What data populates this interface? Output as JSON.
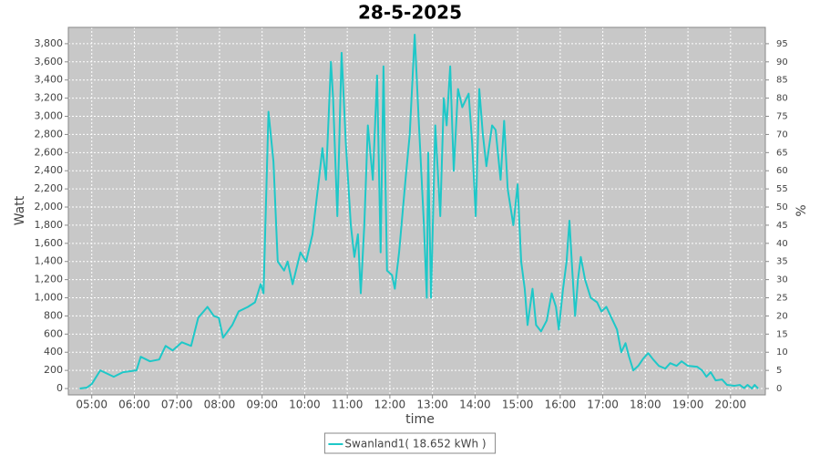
{
  "chart_data": {
    "type": "line",
    "title": "28-5-2025",
    "xlabel": "time",
    "ylabel": "Watt",
    "y2label": "%",
    "x": [
      "04:43",
      "04:53",
      "05:00",
      "05:12",
      "05:31",
      "05:44",
      "06:03",
      "06:09",
      "06:22",
      "06:35",
      "06:44",
      "06:54",
      "07:07",
      "07:20",
      "07:30",
      "07:43",
      "07:52",
      "07:59",
      "08:05",
      "08:18",
      "08:27",
      "08:40",
      "08:50",
      "08:58",
      "09:02",
      "09:09",
      "09:16",
      "09:22",
      "09:31",
      "09:36",
      "09:43",
      "09:54",
      "10:02",
      "10:11",
      "10:20",
      "10:25",
      "10:30",
      "10:37",
      "10:40",
      "10:46",
      "10:52",
      "10:58",
      "11:05",
      "11:10",
      "11:15",
      "11:19",
      "11:24",
      "11:29",
      "11:36",
      "11:42",
      "11:47",
      "11:51",
      "11:56",
      "12:03",
      "12:07",
      "12:13",
      "12:22",
      "12:28",
      "12:35",
      "12:41",
      "12:48",
      "12:52",
      "12:54",
      "12:58",
      "13:04",
      "13:11",
      "13:16",
      "13:20",
      "13:25",
      "13:30",
      "13:36",
      "13:42",
      "13:51",
      "13:56",
      "14:01",
      "14:06",
      "14:11",
      "14:16",
      "14:24",
      "14:29",
      "14:36",
      "14:41",
      "14:46",
      "14:54",
      "15:00",
      "15:05",
      "15:10",
      "15:14",
      "15:21",
      "15:26",
      "15:33",
      "15:41",
      "15:48",
      "15:54",
      "15:58",
      "16:04",
      "16:09",
      "16:13",
      "16:17",
      "16:21",
      "16:25",
      "16:29",
      "16:35",
      "16:43",
      "16:52",
      "16:58",
      "17:05",
      "17:11",
      "17:20",
      "17:26",
      "17:32",
      "17:37",
      "17:43",
      "17:50",
      "17:57",
      "18:04",
      "18:11",
      "18:19",
      "18:28",
      "18:35",
      "18:44",
      "18:51",
      "19:00",
      "19:13",
      "19:20",
      "19:26",
      "19:32",
      "19:39",
      "19:48",
      "19:55",
      "20:05",
      "20:13",
      "20:19",
      "20:24",
      "20:30",
      "20:34",
      "20:39"
    ],
    "series": [
      {
        "name": "Swanland1( 18.652 kWh )",
        "color": "#1ec8c8",
        "values": [
          0,
          10,
          50,
          200,
          130,
          180,
          200,
          350,
          300,
          320,
          470,
          420,
          510,
          470,
          780,
          900,
          800,
          780,
          560,
          700,
          850,
          900,
          950,
          1150,
          1050,
          3050,
          2500,
          1400,
          1300,
          1400,
          1150,
          1500,
          1400,
          1700,
          2300,
          2650,
          2300,
          3600,
          3200,
          1900,
          3700,
          2700,
          1800,
          1450,
          1700,
          1050,
          1800,
          2900,
          2300,
          3450,
          1500,
          3550,
          1300,
          1250,
          1100,
          1500,
          2300,
          2800,
          3900,
          2900,
          1800,
          1000,
          2600,
          1000,
          2900,
          1900,
          3200,
          2900,
          3550,
          2400,
          3300,
          3100,
          3250,
          2700,
          1900,
          3300,
          2800,
          2450,
          2900,
          2850,
          2300,
          2950,
          2200,
          1800,
          2250,
          1400,
          1100,
          700,
          1100,
          700,
          630,
          750,
          1050,
          900,
          650,
          1100,
          1400,
          1850,
          1300,
          800,
          1200,
          1450,
          1200,
          1000,
          950,
          850,
          900,
          800,
          650,
          400,
          500,
          350,
          200,
          250,
          330,
          390,
          320,
          250,
          220,
          280,
          250,
          300,
          250,
          240,
          200,
          130,
          180,
          90,
          100,
          40,
          30,
          40,
          5,
          40,
          0,
          40,
          0
        ]
      }
    ],
    "xlim": [
      "04:27",
      "20:49"
    ],
    "xticks": [
      "05:00",
      "06:00",
      "07:00",
      "08:00",
      "09:00",
      "10:00",
      "11:00",
      "12:00",
      "13:00",
      "14:00",
      "15:00",
      "16:00",
      "17:00",
      "18:00",
      "19:00",
      "20:00"
    ],
    "ylim": [
      -70,
      3980
    ],
    "yticks": [
      0,
      200,
      400,
      600,
      800,
      {
        "value": 1000,
        "label": "1,000"
      },
      {
        "value": 1200,
        "label": "1,200"
      },
      {
        "value": 1400,
        "label": "1,400"
      },
      {
        "value": 1600,
        "label": "1,600"
      },
      {
        "value": 1800,
        "label": "1,800"
      },
      {
        "value": 2000,
        "label": "2,000"
      },
      {
        "value": 2200,
        "label": "2,200"
      },
      {
        "value": 2400,
        "label": "2,400"
      },
      {
        "value": 2600,
        "label": "2,600"
      },
      {
        "value": 2800,
        "label": "2,800"
      },
      {
        "value": 3000,
        "label": "3,000"
      },
      {
        "value": 3200,
        "label": "3,200"
      },
      {
        "value": 3400,
        "label": "3,400"
      },
      {
        "value": 3600,
        "label": "3,600"
      },
      {
        "value": 3800,
        "label": "3,800"
      }
    ],
    "y2lim": [
      -1.75,
      99.5
    ],
    "y2ticks": [
      0,
      5,
      10,
      15,
      20,
      25,
      30,
      35,
      40,
      45,
      50,
      55,
      60,
      65,
      70,
      75,
      80,
      85,
      90,
      95
    ],
    "grid": true,
    "background": "#c8c8c8",
    "legend": "bottom"
  }
}
